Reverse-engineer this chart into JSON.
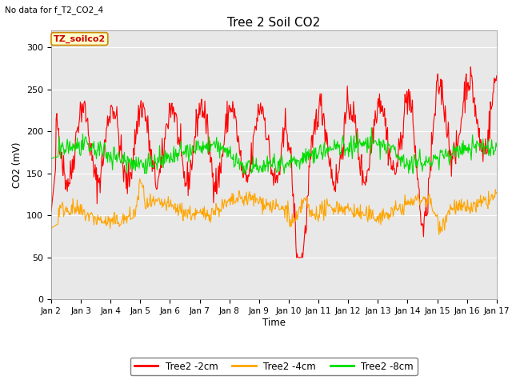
{
  "title": "Tree 2 Soil CO2",
  "top_left_text": "No data for f_T2_CO2_4",
  "ylabel": "CO2 (mV)",
  "xlabel": "Time",
  "box_label": "TZ_soilco2",
  "legend_entries": [
    "Tree2 -2cm",
    "Tree2 -4cm",
    "Tree2 -8cm"
  ],
  "line_colors": [
    "#ff0000",
    "#ffa500",
    "#00dd00"
  ],
  "background_color": "#e8e8e8",
  "ylim": [
    0,
    320
  ],
  "yticks": [
    0,
    50,
    100,
    150,
    200,
    250,
    300
  ],
  "x_tick_labels": [
    "Jan 2",
    "Jan 3",
    "Jan 4",
    "Jan 5",
    "Jan 6",
    "Jan 7",
    "Jan 8",
    "Jan 9",
    "Jan 10",
    "Jan 11",
    "Jan 12",
    "Jan 13",
    "Jan 14",
    "Jan 15",
    "Jan 16",
    "Jan 17"
  ],
  "n_days": 15,
  "points_per_day": 48
}
